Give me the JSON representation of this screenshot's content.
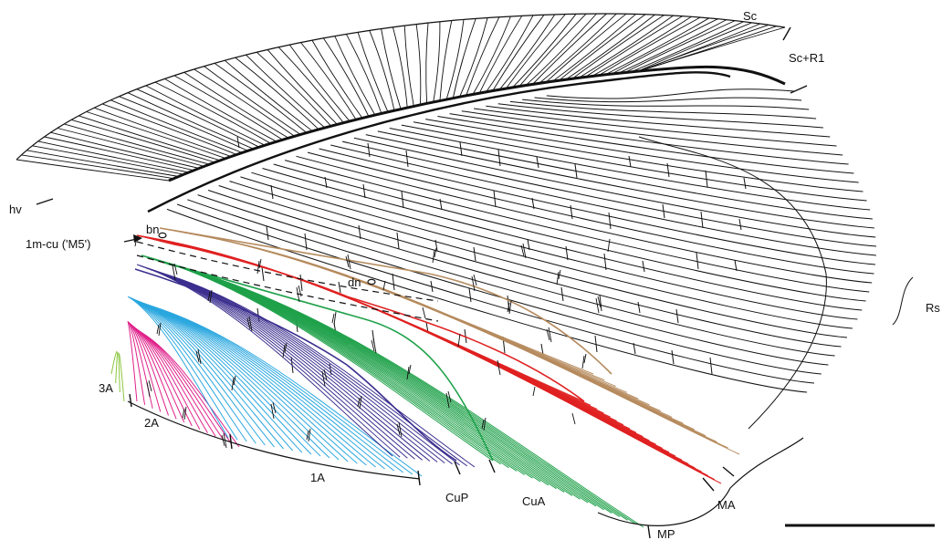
{
  "labels": {
    "sc": "Sc",
    "sc_r1": "Sc+R1",
    "hv": "hv",
    "m_cu": "1m-cu ('M5')",
    "bn": "bn",
    "dn": "dn",
    "rs": "Rs",
    "a3": "3A",
    "a2": "2A",
    "a1": "1A",
    "cup": "CuP",
    "cua": "CuA",
    "ma": "MA",
    "mp": "MP"
  },
  "colors": {
    "ink": "#111111",
    "a3": "#8cc63f",
    "a2": "#e0218a",
    "a1": "#2aa7df",
    "cup": "#3b2f8f",
    "cua": "#1fa14a",
    "mp": "#e02222",
    "ma": "#b68b5e"
  }
}
